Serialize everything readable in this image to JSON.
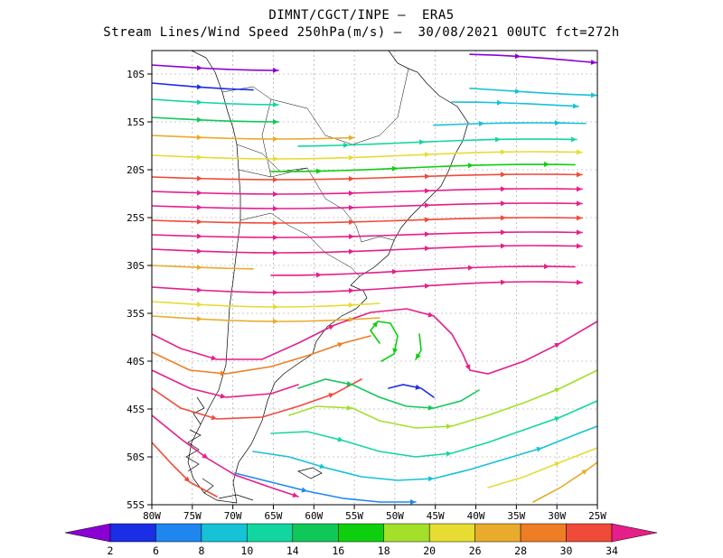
{
  "title_line1": "DIMNT/CGCT/INPE –  ERA5",
  "title_line2": "Stream Lines/Wind Speed 250hPa(m/s) –  30/08/2021 00UTC fct=272h",
  "lat_ticks": [
    "10S",
    "15S",
    "20S",
    "25S",
    "30S",
    "35S",
    "40S",
    "45S",
    "50S",
    "55S"
  ],
  "lon_ticks": [
    "80W",
    "75W",
    "70W",
    "65W",
    "60W",
    "55W",
    "50W",
    "45W",
    "40W",
    "35W",
    "30W",
    "25W"
  ],
  "colorbar": {
    "labels": [
      "2",
      "6",
      "8",
      "10",
      "14",
      "16",
      "18",
      "20",
      "26",
      "28",
      "30",
      "34"
    ],
    "colors": [
      "#8a00d4",
      "#1a2ee6",
      "#1f86f0",
      "#16c2d6",
      "#12d6a0",
      "#10c858",
      "#0ecf0e",
      "#a3e02a",
      "#e6dc32",
      "#e8ab2c",
      "#ee7d24",
      "#f04a3a",
      "#e61e8a"
    ]
  },
  "chart_data": {
    "type": "streamline-map",
    "title": "Stream Lines/Wind Speed 250hPa(m/s)",
    "level": "250hPa",
    "units": "m/s",
    "valid": "30/08/2021 00UTC",
    "forecast": "fct=272h",
    "lon_range": [
      -80,
      -25
    ],
    "lat_range": [
      -55,
      -7
    ],
    "speed_levels": [
      2,
      6,
      8,
      10,
      14,
      16,
      18,
      20,
      26,
      28,
      30,
      34
    ]
  }
}
